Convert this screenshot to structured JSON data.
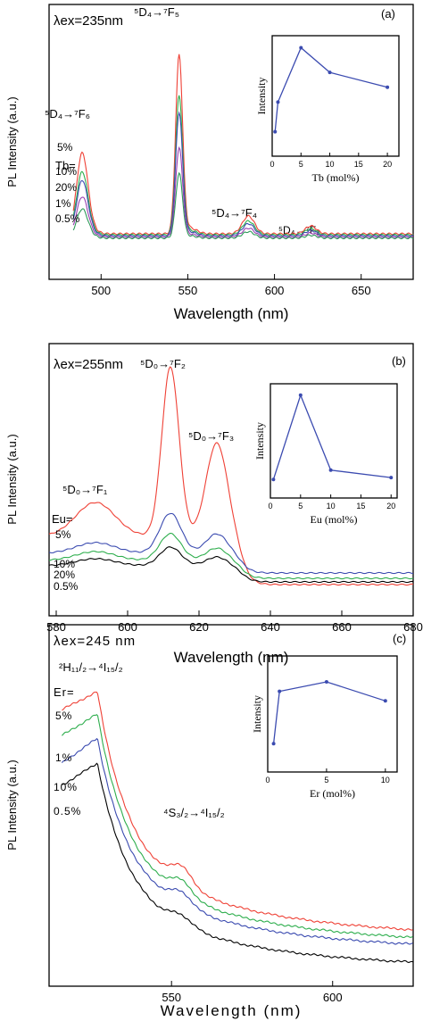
{
  "chart_data": [
    {
      "type": "line",
      "panel_label": "(a)",
      "excitation": "λex=235nm",
      "xlabel": "Wavelength (nm)",
      "ylabel": "PL Intensity (a.u.)",
      "xlim": [
        470,
        680
      ],
      "xticks": [
        500,
        550,
        600,
        650
      ],
      "ylim": [
        0,
        100
      ],
      "legend_title": "Tb=",
      "series": [
        {
          "name": "5%",
          "color": "#ef4136",
          "scale": 1.0,
          "offset": 0
        },
        {
          "name": "10%",
          "color": "#2eae4d",
          "scale": 0.78,
          "offset": 0
        },
        {
          "name": "20%",
          "color": "#3b4bb0",
          "scale": 0.69,
          "offset": 0
        },
        {
          "name": "1%",
          "color": "#9a3fb1",
          "scale": 0.5,
          "offset": 0
        },
        {
          "name": "0.5%",
          "color": "#2f9a5a",
          "scale": 0.36,
          "offset": 0
        }
      ],
      "profile": {
        "baseline": 5,
        "peaks": [
          {
            "x": 489,
            "h": 38,
            "w": 3.2
          },
          {
            "x": 545,
            "h": 90,
            "w": 2.0
          },
          {
            "x": 585,
            "h": 9,
            "w": 3.5
          },
          {
            "x": 621,
            "h": 4,
            "w": 3.2
          }
        ]
      },
      "annotations": [
        {
          "text": "⁵D₄→⁷F₆"
        },
        {
          "text": "⁵D₄→⁷F₅"
        },
        {
          "text": "⁵D₄→⁷F₄"
        },
        {
          "text": "⁵D₄→⁷F₃"
        }
      ],
      "inset": {
        "type": "line",
        "xlabel": "Tb (mol%)",
        "ylabel": "Intensity",
        "xlim": [
          0,
          22
        ],
        "xticks": [
          0,
          5,
          10,
          15,
          20
        ],
        "x": [
          0.5,
          1,
          5,
          10,
          20
        ],
        "y": [
          0.15,
          0.45,
          1.0,
          0.75,
          0.6
        ],
        "color": "#3b4bb0"
      }
    },
    {
      "type": "line",
      "panel_label": "(b)",
      "excitation": "λex=255nm",
      "xlabel": "Wavelength (nm)",
      "ylabel": "PL Intensity (a.u.)",
      "xlim": [
        578,
        680
      ],
      "xticks": [
        580,
        600,
        620,
        640,
        660,
        680
      ],
      "ylim": [
        0,
        100
      ],
      "legend_title": "Eu=",
      "series": [
        {
          "name": "5%",
          "color": "#ef4136"
        },
        {
          "name": "10%",
          "color": "#3b4bb0"
        },
        {
          "name": "20%",
          "color": "#2eae4d"
        },
        {
          "name": "0.5%",
          "color": "#000000"
        }
      ],
      "annotations": [
        {
          "text": "⁵D₀→⁷F₁"
        },
        {
          "text": "⁵D₀→⁷F₂"
        },
        {
          "text": "⁵D₀→⁷F₃"
        }
      ],
      "inset": {
        "type": "line",
        "xlabel": "Eu (mol%)",
        "ylabel": "Intensity",
        "xlim": [
          0,
          21
        ],
        "xticks": [
          0,
          5,
          10,
          15,
          20
        ],
        "x": [
          0.5,
          5,
          10,
          20
        ],
        "y": [
          0.1,
          1.0,
          0.2,
          0.12
        ],
        "color": "#3b4bb0"
      }
    },
    {
      "type": "line",
      "panel_label": "(c)",
      "excitation": "λex=245 nm",
      "xlabel": "Wavelength (nm)",
      "ylabel": "PL Intensity (a.u.)",
      "xlim": [
        512,
        625
      ],
      "xticks": [
        550,
        600
      ],
      "ylim": [
        0,
        100
      ],
      "legend_title": "Er=",
      "series": [
        {
          "name": "5%",
          "color": "#ef4136"
        },
        {
          "name": "1%",
          "color": "#2eae4d"
        },
        {
          "name": "10%",
          "color": "#3b4bb0"
        },
        {
          "name": "0.5%",
          "color": "#000000"
        }
      ],
      "annotations": [
        {
          "text": "²H₁₁/₂→⁴I₁₅/₂"
        },
        {
          "text": "⁴S₃/₂→⁴I₁₅/₂"
        }
      ],
      "inset": {
        "type": "line",
        "xlabel": "Er (mol%)",
        "ylabel": "Intensity",
        "xlim": [
          0,
          11
        ],
        "xticks": [
          0,
          5,
          10
        ],
        "x": [
          0.5,
          1,
          5,
          10
        ],
        "y": [
          0.2,
          0.75,
          0.85,
          0.65
        ],
        "color": "#3b4bb0"
      }
    }
  ]
}
